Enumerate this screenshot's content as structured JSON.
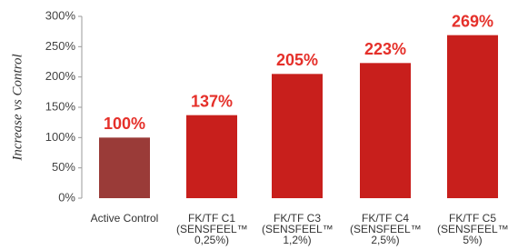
{
  "chart_data": {
    "type": "bar",
    "y_label": "Increase vs Control",
    "categories": [
      "Active Control",
      "FK/TF C1 (SENSFEEL™ 0,25%)",
      "FK/TF C3 (SENSFEEL™ 1,2%)",
      "FK/TF C4 (SENSFEEL™ 2,5%)",
      "FK/TF C5 (SENSFEEL™ 5%)"
    ],
    "values": [
      100,
      137,
      205,
      223,
      269
    ],
    "value_labels": [
      "100%",
      "137%",
      "205%",
      "223%",
      "269%"
    ],
    "colors": [
      "#9a3b38",
      "#c81f1c",
      "#c81f1c",
      "#c81f1c",
      "#c81f1c"
    ],
    "label_color": "#e5302a",
    "ylim": [
      0,
      300
    ],
    "yticks": [
      {
        "value": 0,
        "label": "0%"
      },
      {
        "value": 50,
        "label": "50%"
      },
      {
        "value": 100,
        "label": "100%"
      },
      {
        "value": 150,
        "label": "150%"
      },
      {
        "value": 200,
        "label": "200%"
      },
      {
        "value": 250,
        "label": "250%"
      },
      {
        "value": 300,
        "label": "300%"
      }
    ]
  }
}
